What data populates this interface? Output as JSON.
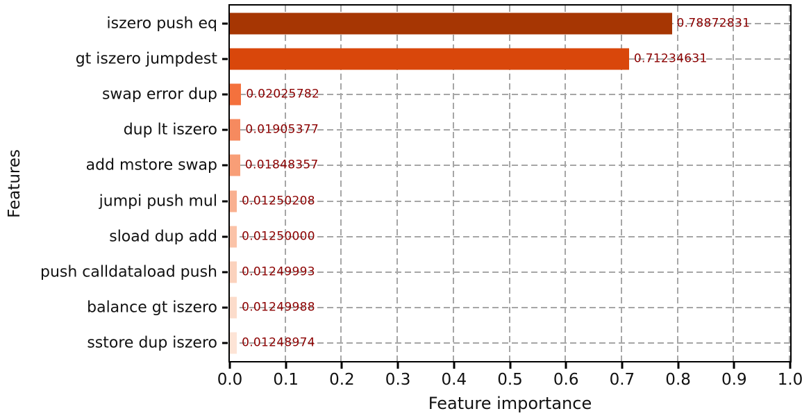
{
  "chart_data": {
    "type": "bar",
    "orientation": "horizontal",
    "title": "",
    "xlabel": "Feature importance",
    "ylabel": "Features",
    "xlim": [
      0.0,
      1.0
    ],
    "xticks": [
      "0.0",
      "0.1",
      "0.2",
      "0.3",
      "0.4",
      "0.5",
      "0.6",
      "0.7",
      "0.8",
      "0.9",
      "1.0"
    ],
    "grid": {
      "axis": "both",
      "style": "dashed",
      "color": "#a6a6a6"
    },
    "legend": "none",
    "categories": [
      "iszero push eq",
      "gt iszero jumpdest",
      "swap error dup",
      "dup lt iszero",
      "add mstore swap",
      "jumpi push mul",
      "sload dup add",
      "push calldataload push",
      "balance gt iszero",
      "sstore dup iszero"
    ],
    "values": [
      0.78872831,
      0.71234631,
      0.02025782,
      0.01905377,
      0.01848357,
      0.01250208,
      0.0125,
      0.01249993,
      0.01249988,
      0.01248974
    ],
    "value_labels": [
      "0.78872831",
      "0.71234631",
      "0.02025782",
      "0.01905377",
      "0.01848357",
      "0.01250208",
      "0.01250000",
      "0.01249993",
      "0.01249988",
      "0.01248974"
    ],
    "bar_colors": [
      "#a63603",
      "#d9470b",
      "#f4713d",
      "#f68a5f",
      "#f89e77",
      "#f9b090",
      "#fbc3a8",
      "#fbd2bd",
      "#fcdccb",
      "#fde4d6"
    ],
    "value_label_color": "#8b0000",
    "axis_color": "#000000"
  }
}
